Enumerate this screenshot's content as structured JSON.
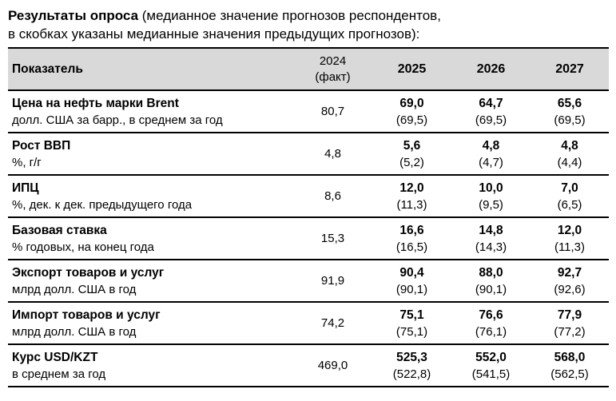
{
  "title": {
    "bold": "Результаты опроса",
    "line1_rest": " (медианное значение прогнозов респондентов,",
    "line2": "в скобках указаны медианные значения предыдущих прогнозов):"
  },
  "colors": {
    "header_bg": "#d9d9d9",
    "border": "#000000",
    "text": "#000000"
  },
  "table": {
    "header": {
      "indicator": "Показатель",
      "fact_year": "2024",
      "fact_label": "(факт)",
      "years": [
        "2025",
        "2026",
        "2027"
      ]
    },
    "rows": [
      {
        "name": "Цена на нефть марки Brent",
        "unit": "долл. США за барр., в среднем за год",
        "fact": "80,7",
        "y2025": "69,0",
        "y2025_prev": "(69,5)",
        "y2026": "64,7",
        "y2026_prev": "(69,5)",
        "y2027": "65,6",
        "y2027_prev": "(69,5)"
      },
      {
        "name": "Рост ВВП",
        "unit": "%, г/г",
        "fact": "4,8",
        "y2025": "5,6",
        "y2025_prev": "(5,2)",
        "y2026": "4,8",
        "y2026_prev": "(4,7)",
        "y2027": "4,8",
        "y2027_prev": "(4,4)"
      },
      {
        "name": "ИПЦ",
        "unit": "%, дек. к дек. предыдущего года",
        "fact": "8,6",
        "y2025": "12,0",
        "y2025_prev": "(11,3)",
        "y2026": "10,0",
        "y2026_prev": "(9,5)",
        "y2027": "7,0",
        "y2027_prev": "(6,5)"
      },
      {
        "name": "Базовая ставка",
        "unit": "% годовых, на конец года",
        "fact": "15,3",
        "y2025": "16,6",
        "y2025_prev": "(16,5)",
        "y2026": "14,8",
        "y2026_prev": "(14,3)",
        "y2027": "12,0",
        "y2027_prev": "(11,3)"
      },
      {
        "name": "Экспорт товаров и услуг",
        "unit": "млрд долл. США в год",
        "fact": "91,9",
        "y2025": "90,4",
        "y2025_prev": "(90,1)",
        "y2026": "88,0",
        "y2026_prev": "(90,1)",
        "y2027": "92,7",
        "y2027_prev": "(92,6)"
      },
      {
        "name": "Импорт товаров и услуг",
        "unit": "млрд долл. США в год",
        "fact": "74,2",
        "y2025": "75,1",
        "y2025_prev": "(75,1)",
        "y2026": "76,6",
        "y2026_prev": "(76,1)",
        "y2027": "77,9",
        "y2027_prev": "(77,2)"
      },
      {
        "name": "Курс USD/KZT",
        "unit": "в среднем за год",
        "fact": "469,0",
        "y2025": "525,3",
        "y2025_prev": "(522,8)",
        "y2026": "552,0",
        "y2026_prev": "(541,5)",
        "y2027": "568,0",
        "y2027_prev": "(562,5)"
      }
    ]
  }
}
